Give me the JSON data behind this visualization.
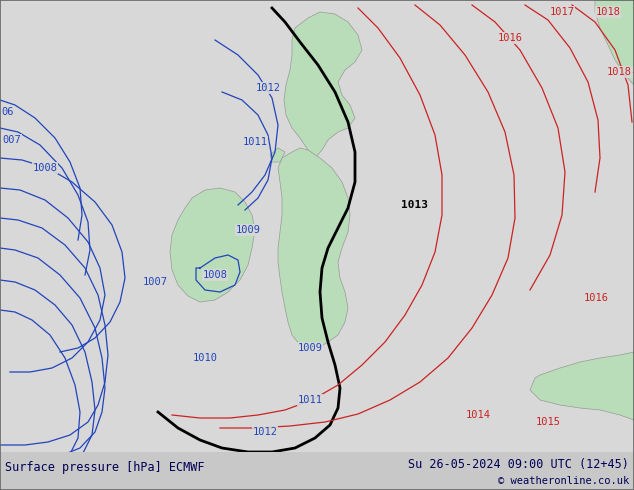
{
  "title_left": "Surface pressure [hPa] ECMWF",
  "title_right": "Su 26-05-2024 09:00 UTC (12+45)",
  "copyright": "© weatheronline.co.uk",
  "background_color": "#d8d8d8",
  "land_color": "#b8ddb8",
  "fig_width": 6.34,
  "fig_height": 4.9,
  "dpi": 100,
  "bottom_bar_height": 38,
  "bottom_bar_color": "#c8c8c8",
  "title_fontsize": 8.5,
  "copyright_fontsize": 7.5,
  "blue_color": "#2244bb",
  "black_color": "#000000",
  "red_color": "#cc2222"
}
